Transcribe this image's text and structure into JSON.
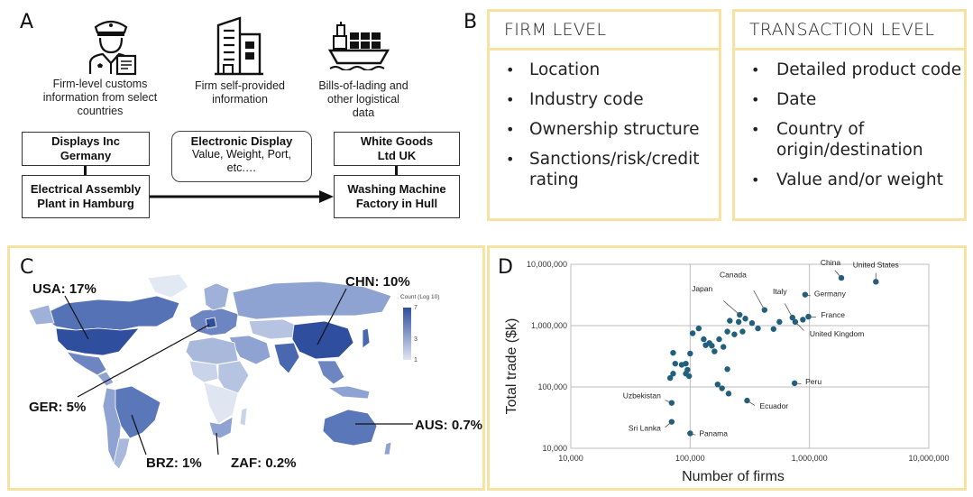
{
  "panels": {
    "a": "A",
    "b": "B",
    "c": "C",
    "d": "D"
  },
  "panel_a": {
    "sources": [
      {
        "label": "Firm-level customs information from select countries",
        "icon": "customs-officer-icon"
      },
      {
        "label": "Firm self-provided information",
        "icon": "office-building-icon"
      },
      {
        "label": "Bills-of-lading and other logistical data",
        "icon": "cargo-ship-icon"
      }
    ],
    "firm_left": "Displays Inc Germany",
    "plant_left": "Electrical Assembly Plant in Hamburg",
    "middle_title": "Electronic Display",
    "middle_detail": "Value, Weight, Port, etc.…",
    "firm_right": "White Goods Ltd UK",
    "plant_right": "Washing Machine Factory in Hull"
  },
  "panel_b": {
    "firm": {
      "title": "FIRM LEVEL",
      "items": [
        "Location",
        "Industry code",
        "Ownership structure",
        "Sanctions/risk/credit rating"
      ]
    },
    "transaction": {
      "title": "TRANSACTION LEVEL",
      "items": [
        "Detailed product code",
        "Date",
        "Country of origin/destination",
        "Value and/or weight"
      ]
    }
  },
  "panel_c": {
    "legend_title": "Count (Log 10)",
    "legend_ticks": [
      "7",
      "3",
      "1"
    ],
    "labels": {
      "usa": "USA: 17%",
      "chn": "CHN: 10%",
      "ger": "GER: 5%",
      "aus": "AUS: 0.7%",
      "brz": "BRZ: 1%",
      "zaf": "ZAF: 0.2%"
    },
    "colors": {
      "low": "#dfe6f2",
      "high": "#2f4f9e"
    }
  },
  "chart_data": {
    "type": "scatter",
    "xscale": "log",
    "yscale": "log",
    "xlabel": "Number of firms",
    "ylabel": "Total trade ($k)",
    "xlim": [
      10000,
      10000000
    ],
    "ylim": [
      10000,
      10000000
    ],
    "xticks": [
      "10,000",
      "100,000",
      "1,000,000",
      "10,000,000"
    ],
    "yticks": [
      "10,000",
      "100,000",
      "1,000,000",
      "10,000,000"
    ],
    "point_color": "#215f7c",
    "labeled_points": [
      {
        "name": "United States",
        "x": 3600000,
        "y": 5200000
      },
      {
        "name": "China",
        "x": 1850000,
        "y": 6000000
      },
      {
        "name": "Germany",
        "x": 920000,
        "y": 3200000
      },
      {
        "name": "Canada",
        "x": 420000,
        "y": 1800000
      },
      {
        "name": "Japan",
        "x": 260000,
        "y": 1500000
      },
      {
        "name": "Italy",
        "x": 720000,
        "y": 1350000
      },
      {
        "name": "France",
        "x": 980000,
        "y": 1400000
      },
      {
        "name": "United Kingdom",
        "x": 760000,
        "y": 1150000
      },
      {
        "name": "Peru",
        "x": 750000,
        "y": 115000
      },
      {
        "name": "Ecuador",
        "x": 300000,
        "y": 60000
      },
      {
        "name": "Uzbekistan",
        "x": 70000,
        "y": 55000
      },
      {
        "name": "Sri Lanka",
        "x": 70000,
        "y": 27000
      },
      {
        "name": "Panama",
        "x": 100000,
        "y": 17500
      }
    ],
    "points": [
      {
        "x": 72000,
        "y": 360000
      },
      {
        "x": 75000,
        "y": 240000
      },
      {
        "x": 85000,
        "y": 230000
      },
      {
        "x": 92000,
        "y": 240000
      },
      {
        "x": 100000,
        "y": 350000
      },
      {
        "x": 105000,
        "y": 750000
      },
      {
        "x": 118000,
        "y": 900000
      },
      {
        "x": 130000,
        "y": 600000
      },
      {
        "x": 135000,
        "y": 480000
      },
      {
        "x": 145000,
        "y": 520000
      },
      {
        "x": 152000,
        "y": 470000
      },
      {
        "x": 160000,
        "y": 380000
      },
      {
        "x": 175000,
        "y": 600000
      },
      {
        "x": 190000,
        "y": 450000
      },
      {
        "x": 205000,
        "y": 800000
      },
      {
        "x": 215000,
        "y": 1200000
      },
      {
        "x": 235000,
        "y": 720000
      },
      {
        "x": 255000,
        "y": 1150000
      },
      {
        "x": 275000,
        "y": 800000
      },
      {
        "x": 290000,
        "y": 1300000
      },
      {
        "x": 330000,
        "y": 1100000
      },
      {
        "x": 370000,
        "y": 900000
      },
      {
        "x": 560000,
        "y": 1150000
      },
      {
        "x": 500000,
        "y": 880000
      },
      {
        "x": 880000,
        "y": 1250000
      },
      {
        "x": 68000,
        "y": 140000
      },
      {
        "x": 72000,
        "y": 165000
      },
      {
        "x": 92000,
        "y": 165000
      },
      {
        "x": 95000,
        "y": 190000
      },
      {
        "x": 98000,
        "y": 150000
      },
      {
        "x": 205000,
        "y": 195000
      },
      {
        "x": 170000,
        "y": 110000
      },
      {
        "x": 185000,
        "y": 95000
      },
      {
        "x": 210000,
        "y": 78000
      }
    ]
  }
}
